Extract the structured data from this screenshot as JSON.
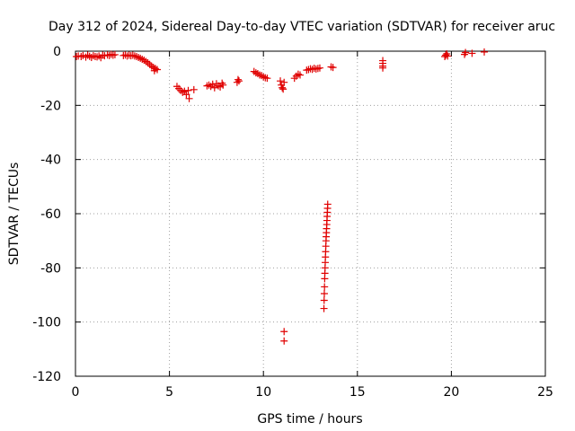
{
  "chart_data": {
    "type": "scatter",
    "title": "Day 312 of 2024, Sidereal Day-to-day VTEC variation (SDTVAR) for receiver aruc",
    "xlabel": "GPS time / hours",
    "ylabel": "SDTVAR / TECUs",
    "xlim": [
      0,
      25
    ],
    "ylim": [
      -120,
      0
    ],
    "xticks": [
      0,
      5,
      10,
      15,
      20,
      25
    ],
    "yticks": [
      -120,
      -100,
      -80,
      -60,
      -40,
      -20,
      0
    ],
    "grid": true,
    "marker": "plus",
    "color": "#e00000",
    "series": [
      {
        "name": "SDTVAR",
        "points": [
          [
            0.05,
            -2.0
          ],
          [
            0.15,
            -1.8
          ],
          [
            0.3,
            -2.0
          ],
          [
            0.4,
            -1.6
          ],
          [
            0.55,
            -2.2
          ],
          [
            0.65,
            -1.5
          ],
          [
            0.75,
            -1.9
          ],
          [
            0.85,
            -2.3
          ],
          [
            0.95,
            -1.7
          ],
          [
            1.05,
            -2.0
          ],
          [
            1.15,
            -2.1
          ],
          [
            1.25,
            -1.8
          ],
          [
            1.35,
            -2.4
          ],
          [
            1.45,
            -1.5
          ],
          [
            1.55,
            -1.7
          ],
          [
            1.7,
            -1.4
          ],
          [
            1.8,
            -1.6
          ],
          [
            1.9,
            -1.2
          ],
          [
            2.0,
            -1.5
          ],
          [
            2.1,
            -1.3
          ],
          [
            2.55,
            -1.6
          ],
          [
            2.65,
            -1.4
          ],
          [
            2.75,
            -1.8
          ],
          [
            2.85,
            -1.5
          ],
          [
            2.95,
            -1.7
          ],
          [
            3.05,
            -1.5
          ],
          [
            3.15,
            -1.8
          ],
          [
            3.25,
            -2.0
          ],
          [
            3.35,
            -2.3
          ],
          [
            3.45,
            -2.6
          ],
          [
            3.55,
            -3.0
          ],
          [
            3.65,
            -3.3
          ],
          [
            3.75,
            -3.8
          ],
          [
            3.85,
            -4.3
          ],
          [
            3.95,
            -4.9
          ],
          [
            4.05,
            -5.5
          ],
          [
            4.15,
            -6.0
          ],
          [
            4.25,
            -6.4
          ],
          [
            4.35,
            -6.8
          ],
          [
            4.2,
            -7.2
          ],
          [
            5.4,
            -13.0
          ],
          [
            5.5,
            -13.8
          ],
          [
            5.6,
            -14.5
          ],
          [
            5.7,
            -15.2
          ],
          [
            5.8,
            -14.8
          ],
          [
            5.9,
            -16.0
          ],
          [
            6.0,
            -14.5
          ],
          [
            6.05,
            -17.5
          ],
          [
            6.3,
            -14.2
          ],
          [
            7.0,
            -12.8
          ],
          [
            7.1,
            -12.5
          ],
          [
            7.2,
            -13.0
          ],
          [
            7.3,
            -12.2
          ],
          [
            7.4,
            -13.5
          ],
          [
            7.5,
            -12.0
          ],
          [
            7.6,
            -12.8
          ],
          [
            7.7,
            -13.2
          ],
          [
            7.8,
            -11.8
          ],
          [
            7.85,
            -12.5
          ],
          [
            8.6,
            -11.5
          ],
          [
            8.65,
            -10.5
          ],
          [
            8.7,
            -11.0
          ],
          [
            9.5,
            -7.5
          ],
          [
            9.6,
            -8.0
          ],
          [
            9.7,
            -8.3
          ],
          [
            9.8,
            -8.8
          ],
          [
            9.9,
            -9.0
          ],
          [
            10.0,
            -9.5
          ],
          [
            10.1,
            -9.8
          ],
          [
            10.2,
            -10.0
          ],
          [
            10.9,
            -11.0
          ],
          [
            10.95,
            -12.5
          ],
          [
            11.0,
            -13.5
          ],
          [
            11.05,
            -14.0
          ],
          [
            11.1,
            -11.5
          ],
          [
            11.65,
            -10.0
          ],
          [
            11.75,
            -9.2
          ],
          [
            11.85,
            -8.5
          ],
          [
            11.95,
            -8.8
          ],
          [
            12.3,
            -7.0
          ],
          [
            12.4,
            -6.8
          ],
          [
            12.5,
            -6.5
          ],
          [
            12.6,
            -6.7
          ],
          [
            12.7,
            -6.3
          ],
          [
            12.8,
            -6.6
          ],
          [
            12.9,
            -6.4
          ],
          [
            13.0,
            -6.2
          ],
          [
            13.6,
            -5.8
          ],
          [
            13.7,
            -6.0
          ],
          [
            13.22,
            -95.0
          ],
          [
            13.23,
            -92.0
          ],
          [
            13.24,
            -89.5
          ],
          [
            13.25,
            -87.0
          ],
          [
            13.26,
            -84.0
          ],
          [
            13.27,
            -82.0
          ],
          [
            13.28,
            -80.0
          ],
          [
            13.29,
            -78.0
          ],
          [
            13.3,
            -76.0
          ],
          [
            13.31,
            -74.0
          ],
          [
            13.32,
            -72.0
          ],
          [
            13.33,
            -70.0
          ],
          [
            13.34,
            -68.5
          ],
          [
            13.35,
            -67.0
          ],
          [
            13.36,
            -65.5
          ],
          [
            13.37,
            -64.0
          ],
          [
            13.38,
            -62.5
          ],
          [
            13.39,
            -61.0
          ],
          [
            13.4,
            -59.5
          ],
          [
            13.41,
            -58.0
          ],
          [
            13.42,
            -56.5
          ],
          [
            11.1,
            -103.5
          ],
          [
            11.1,
            -107.0
          ],
          [
            16.35,
            -3.5
          ],
          [
            16.35,
            -4.5
          ],
          [
            16.35,
            -5.5
          ],
          [
            16.35,
            -6.2
          ],
          [
            19.65,
            -2.0
          ],
          [
            19.7,
            -1.5
          ],
          [
            19.75,
            -1.0
          ],
          [
            19.8,
            -1.8
          ],
          [
            20.7,
            -1.2
          ],
          [
            20.75,
            -0.5
          ],
          [
            21.1,
            -0.8
          ],
          [
            21.75,
            -0.3
          ]
        ]
      }
    ]
  }
}
